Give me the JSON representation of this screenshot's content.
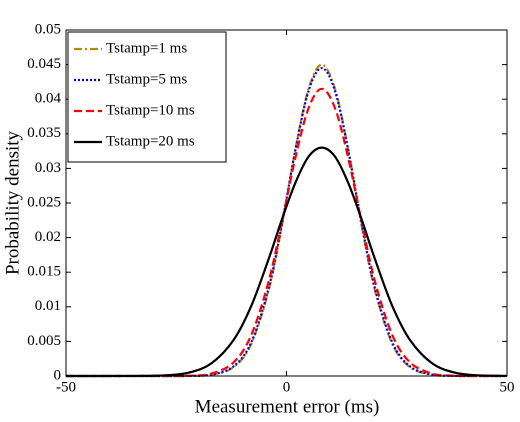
{
  "chart_data": {
    "type": "line",
    "xlabel": "Measurement error (ms)",
    "ylabel": "Probability density",
    "x": [
      -50,
      -34,
      -27,
      -22,
      -17,
      -12,
      -8,
      -4,
      -1,
      2,
      5,
      8,
      11,
      14,
      17,
      20,
      24,
      28,
      33,
      38,
      43,
      50
    ],
    "series": [
      {
        "name": "Tstamp=1 ms",
        "color": "#b8860b",
        "linestyle": "dashdot",
        "values": [
          0,
          0,
          0,
          2e-05,
          0.00017,
          0.00128,
          0.00462,
          0.0125,
          0.0219,
          0.0327,
          0.0415,
          0.045,
          0.0415,
          0.0327,
          0.0219,
          0.0125,
          0.00462,
          0.00128,
          0.00017,
          2e-05,
          0,
          0
        ]
      },
      {
        "name": "Tstamp=5 ms",
        "color": "#0000ff",
        "linestyle": "dotted",
        "values": [
          0,
          0,
          0,
          2e-05,
          0.0002,
          0.00139,
          0.00485,
          0.0128,
          0.0221,
          0.0326,
          0.0412,
          0.0445,
          0.0412,
          0.0326,
          0.0221,
          0.0128,
          0.00485,
          0.00139,
          0.0002,
          2e-05,
          0,
          0
        ]
      },
      {
        "name": "Tstamp=10 ms",
        "color": "#ff0000",
        "linestyle": "dashed",
        "values": [
          0,
          0,
          0,
          4e-05,
          0.00035,
          0.00197,
          0.0059,
          0.0138,
          0.0224,
          0.0315,
          0.0387,
          0.0415,
          0.0387,
          0.0315,
          0.0224,
          0.0138,
          0.0059,
          0.00197,
          0.00035,
          4e-05,
          0,
          0
        ]
      },
      {
        "name": "Tstamp=20 ms",
        "color": "#000000",
        "linestyle": "solid",
        "values": [
          0,
          1e-05,
          0.00011,
          0.00051,
          0.00184,
          0.0052,
          0.0101,
          0.017,
          0.0227,
          0.0279,
          0.0317,
          0.033,
          0.0317,
          0.0279,
          0.0227,
          0.017,
          0.0101,
          0.0052,
          0.00184,
          0.00051,
          0.00011,
          1e-05
        ]
      }
    ],
    "xlim": [
      -50,
      50
    ],
    "xticks": [
      -50,
      0,
      50
    ],
    "ylim": [
      0,
      0.05
    ],
    "yticks": [
      0,
      0.005,
      0.01,
      0.015,
      0.02,
      0.025,
      0.03,
      0.035,
      0.04,
      0.045,
      0.05
    ],
    "grid": false,
    "legend": "upper left"
  }
}
